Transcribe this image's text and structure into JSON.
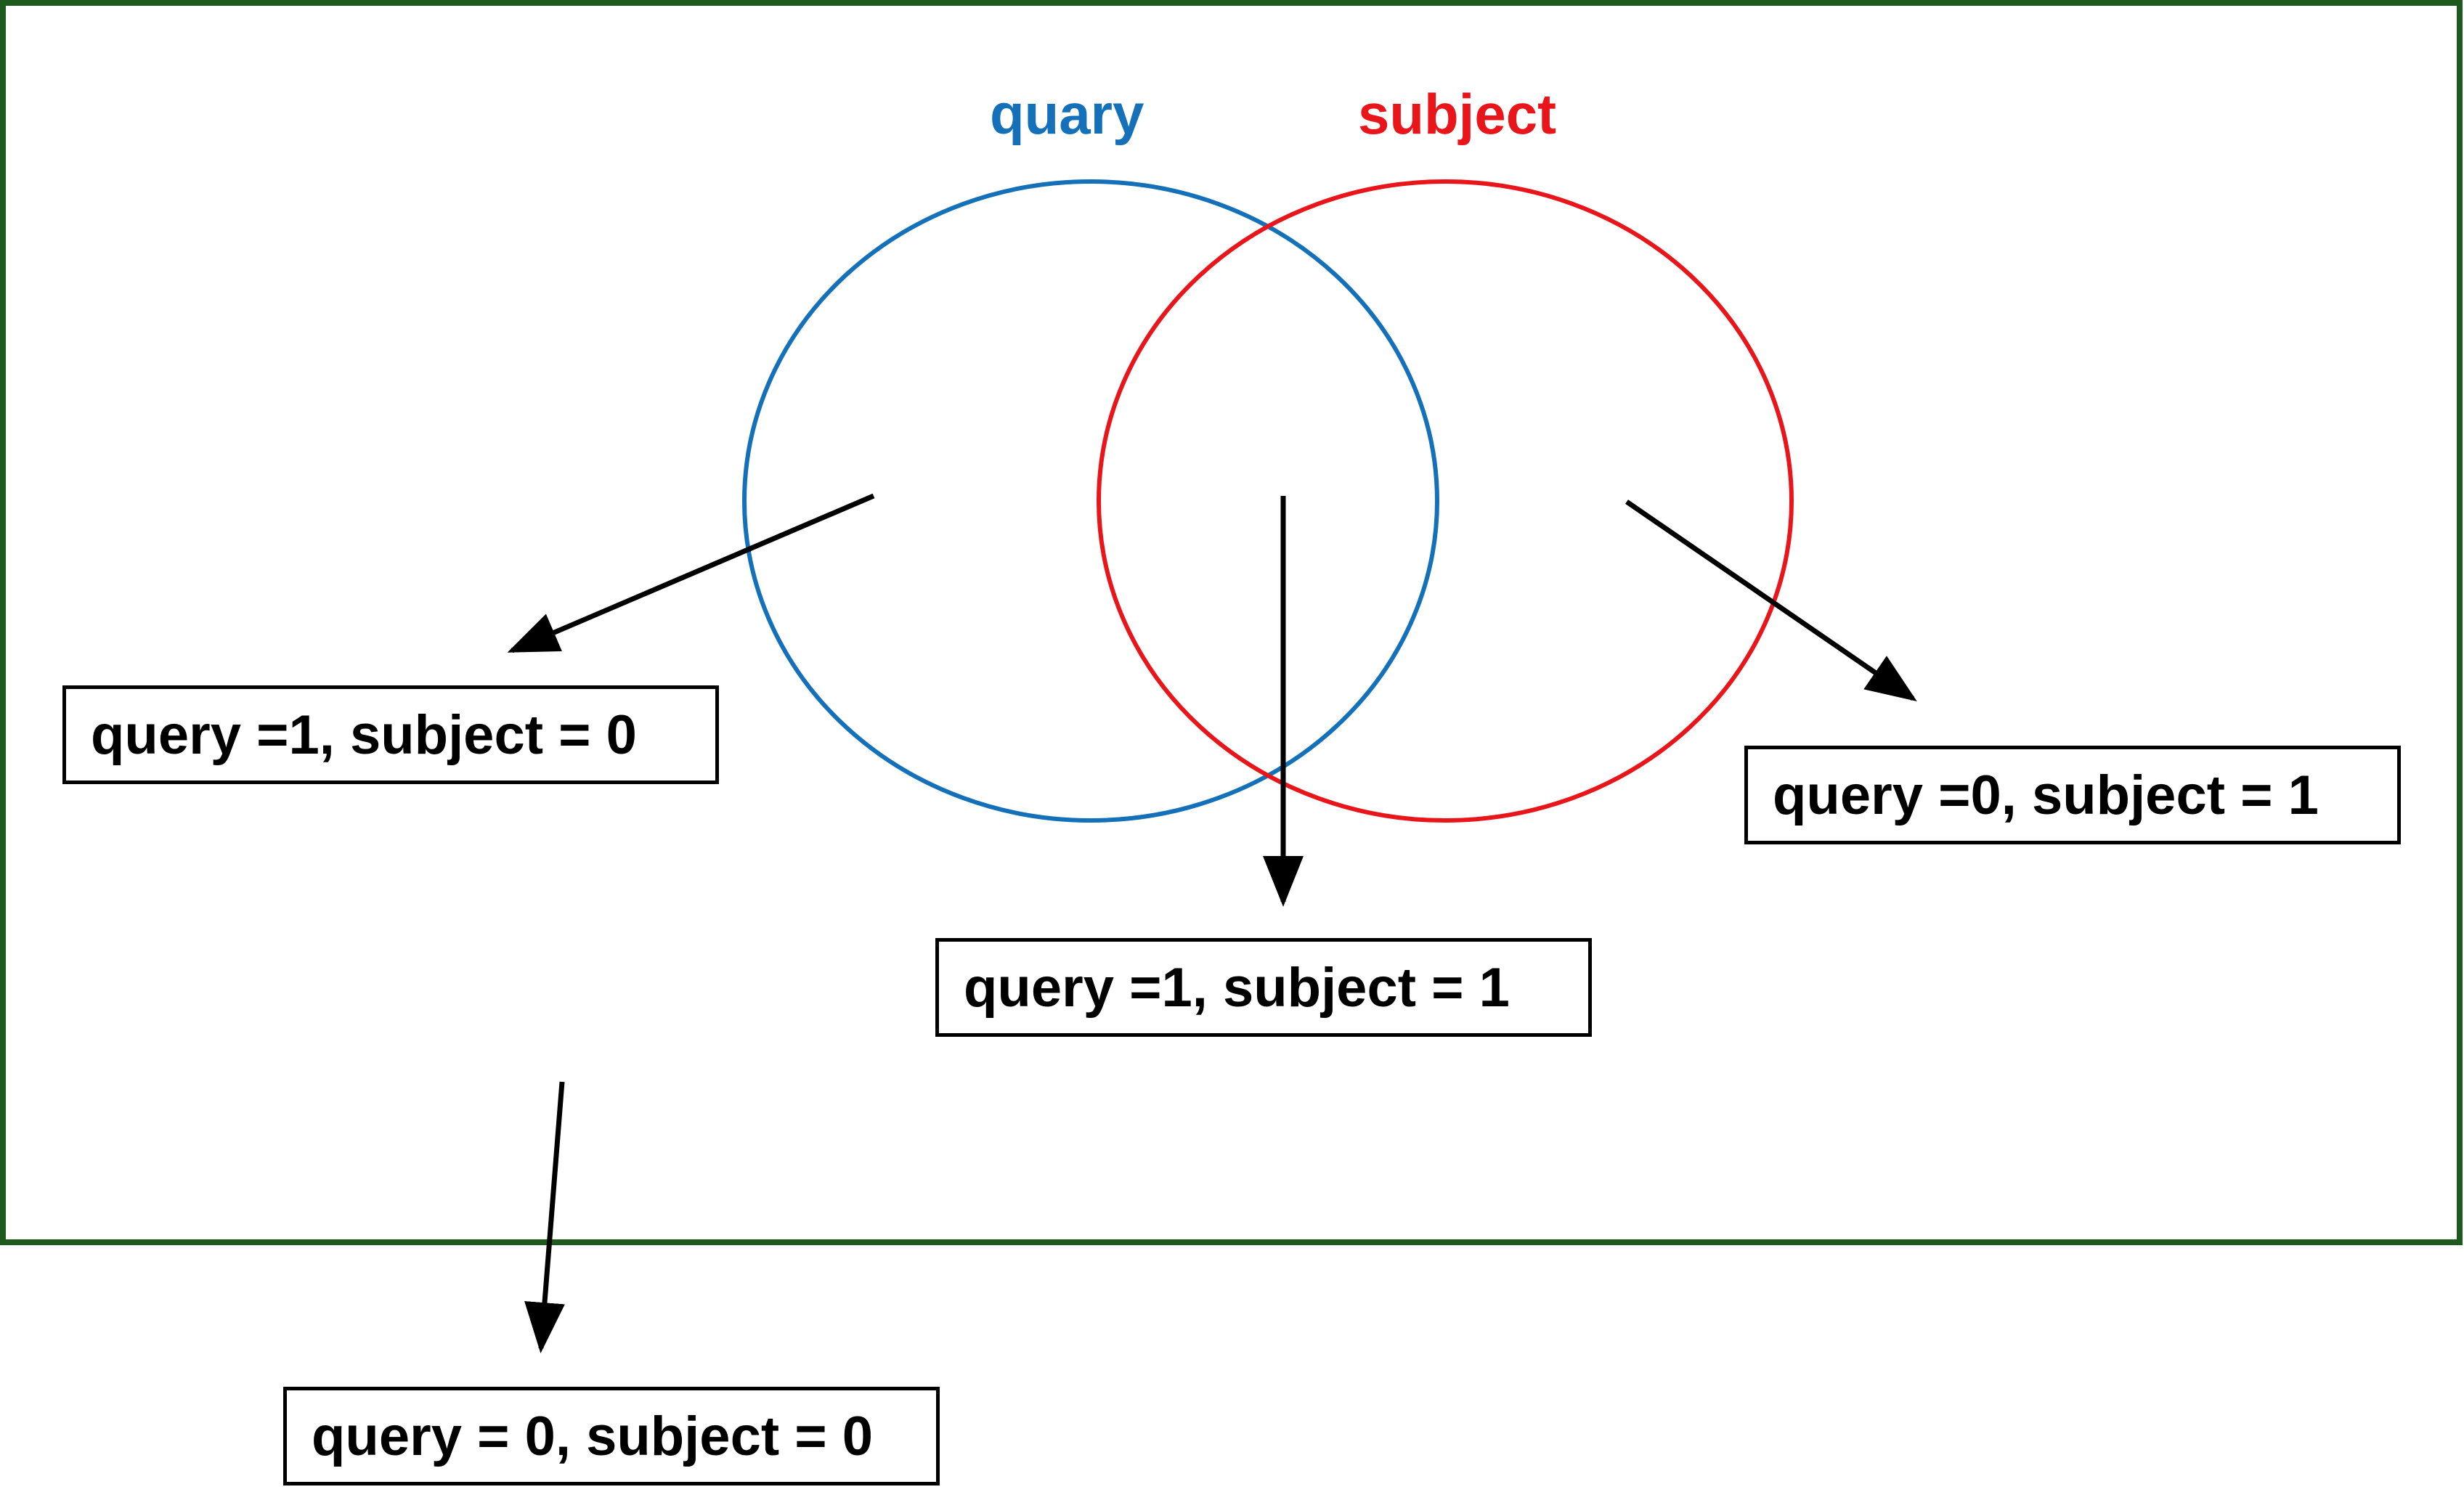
{
  "diagram": {
    "sets": {
      "query": {
        "label": "quary",
        "color": "#1470b9"
      },
      "subject": {
        "label": "subject",
        "color": "#e8161b"
      }
    },
    "frame_color": "#1e5a1e",
    "regions": [
      {
        "id": "query-only",
        "label": "query =1, subject = 0"
      },
      {
        "id": "both",
        "label": "query =1, subject = 1"
      },
      {
        "id": "subject-only",
        "label": "query =0, subject = 1"
      },
      {
        "id": "neither",
        "label": "query = 0, subject = 0"
      }
    ]
  }
}
